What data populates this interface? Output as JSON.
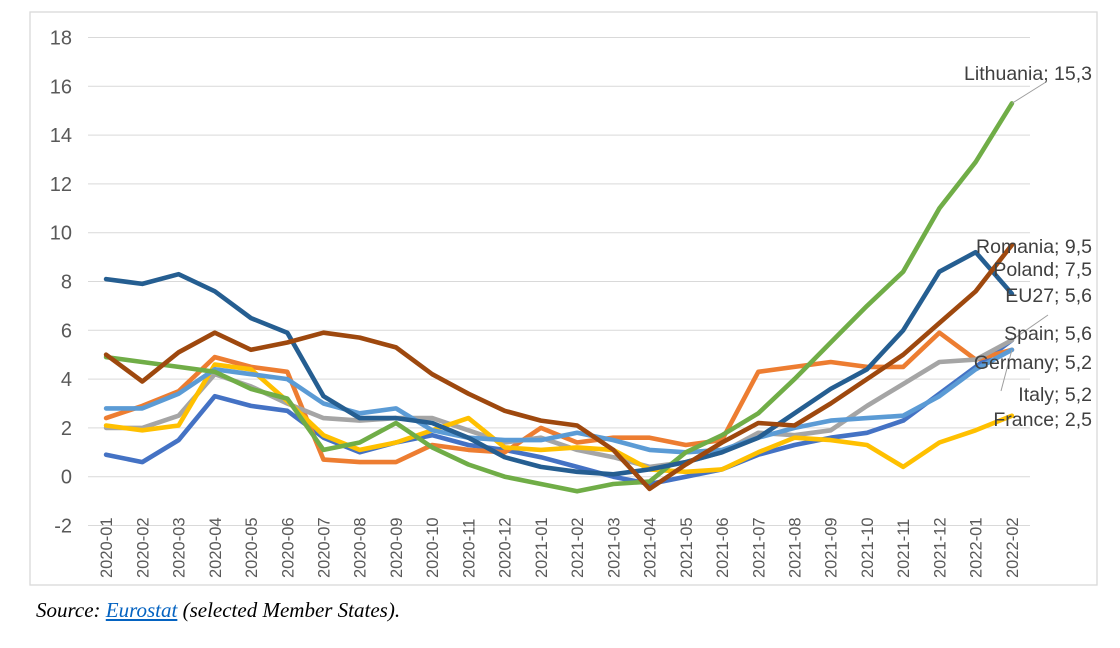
{
  "chart_data": {
    "type": "line",
    "title": "",
    "xlabel": "",
    "ylabel": "",
    "ylim": [
      -2,
      18
    ],
    "ytick_step": 2,
    "grid": true,
    "legend_position": "none (direct labels at line ends)",
    "categories": [
      "2020-01",
      "2020-02",
      "2020-03",
      "2020-04",
      "2020-05",
      "2020-06",
      "2020-07",
      "2020-08",
      "2020-09",
      "2020-10",
      "2020-11",
      "2020-12",
      "2021-01",
      "2021-02",
      "2021-03",
      "2021-04",
      "2021-05",
      "2021-06",
      "2021-07",
      "2021-08",
      "2021-09",
      "2021-10",
      "2021-11",
      "2021-12",
      "2022-01",
      "2022-02"
    ],
    "series": [
      {
        "name": "EU27",
        "color": "#4472C4",
        "end_label": "EU27; 5,6",
        "end_value": 5.6,
        "values": [
          0.9,
          0.6,
          1.5,
          3.3,
          2.9,
          2.7,
          1.6,
          1.0,
          1.4,
          1.7,
          1.3,
          1.1,
          0.8,
          0.4,
          0.0,
          -0.3,
          0.0,
          0.3,
          0.9,
          1.3,
          1.6,
          1.8,
          2.3,
          3.4,
          4.5,
          5.6
        ]
      },
      {
        "name": "Germany",
        "color": "#ED7D31",
        "end_label": "Germany; 5,2",
        "end_value": 5.2,
        "values": [
          2.4,
          2.9,
          3.5,
          4.9,
          4.5,
          4.3,
          0.7,
          0.6,
          0.6,
          1.3,
          1.1,
          1.0,
          2.0,
          1.4,
          1.6,
          1.6,
          1.3,
          1.5,
          4.3,
          4.5,
          4.7,
          4.5,
          4.5,
          5.9,
          4.8,
          5.2
        ]
      },
      {
        "name": "Spain",
        "color": "#A5A5A5",
        "end_label": "Spain; 5,6",
        "end_value": 5.6,
        "values": [
          2.0,
          2.0,
          2.5,
          4.2,
          3.7,
          3.0,
          2.4,
          2.3,
          2.4,
          2.4,
          1.9,
          1.4,
          1.6,
          1.1,
          0.8,
          0.4,
          0.6,
          1.0,
          1.8,
          1.7,
          1.9,
          2.9,
          3.8,
          4.7,
          4.8,
          5.6
        ]
      },
      {
        "name": "France",
        "color": "#FFC000",
        "end_label": "France; 2,5",
        "end_value": 2.5,
        "values": [
          2.1,
          1.9,
          2.1,
          4.6,
          4.4,
          3.1,
          1.7,
          1.1,
          1.4,
          1.9,
          2.4,
          1.2,
          1.1,
          1.2,
          1.1,
          0.3,
          0.2,
          0.3,
          1.0,
          1.6,
          1.5,
          1.3,
          0.4,
          1.4,
          1.9,
          2.5
        ]
      },
      {
        "name": "Italy",
        "color": "#5B9BD5",
        "end_label": "Italy; 5,2",
        "end_value": 5.2,
        "values": [
          2.8,
          2.8,
          3.4,
          4.4,
          4.2,
          4.0,
          3.0,
          2.6,
          2.8,
          1.9,
          1.6,
          1.5,
          1.5,
          1.8,
          1.5,
          1.1,
          1.0,
          1.1,
          1.6,
          2.0,
          2.3,
          2.4,
          2.5,
          3.3,
          4.4,
          5.2
        ]
      },
      {
        "name": "Lithuania",
        "color": "#70AD47",
        "end_label": "Lithuania; 15,3",
        "end_value": 15.3,
        "values": [
          4.9,
          4.7,
          4.5,
          4.3,
          3.6,
          3.2,
          1.1,
          1.4,
          2.2,
          1.2,
          0.5,
          0.0,
          -0.3,
          -0.6,
          -0.3,
          -0.2,
          1.0,
          1.7,
          2.6,
          4.0,
          5.5,
          7.0,
          8.4,
          11.0,
          12.9,
          15.3
        ]
      },
      {
        "name": "Poland",
        "color": "#255E91",
        "end_label": "Poland; 7,5",
        "end_value": 7.5,
        "values": [
          8.1,
          7.9,
          8.3,
          7.6,
          6.5,
          5.9,
          3.3,
          2.4,
          2.4,
          2.2,
          1.6,
          0.8,
          0.4,
          0.2,
          0.1,
          0.3,
          0.6,
          1.0,
          1.6,
          2.6,
          3.6,
          4.4,
          6.0,
          8.4,
          9.2,
          7.5
        ]
      },
      {
        "name": "Romania",
        "color": "#9E480E",
        "end_label": "Romania; 9,5",
        "end_value": 9.5,
        "values": [
          5.0,
          3.9,
          5.1,
          5.9,
          5.2,
          5.5,
          5.9,
          5.7,
          5.3,
          4.2,
          3.4,
          2.7,
          2.3,
          2.1,
          1.1,
          -0.5,
          0.5,
          1.4,
          2.2,
          2.1,
          3.0,
          4.0,
          5.0,
          6.3,
          7.6,
          9.5
        ]
      }
    ]
  },
  "source_line": {
    "prefix": "Source: ",
    "link_text": "Eurostat",
    "suffix": " (selected Member States)."
  },
  "style_colors": {
    "gridline": "#D9D9D9",
    "axis_text": "#595959",
    "data_label_text": "#404040",
    "link": "#0563C1"
  }
}
